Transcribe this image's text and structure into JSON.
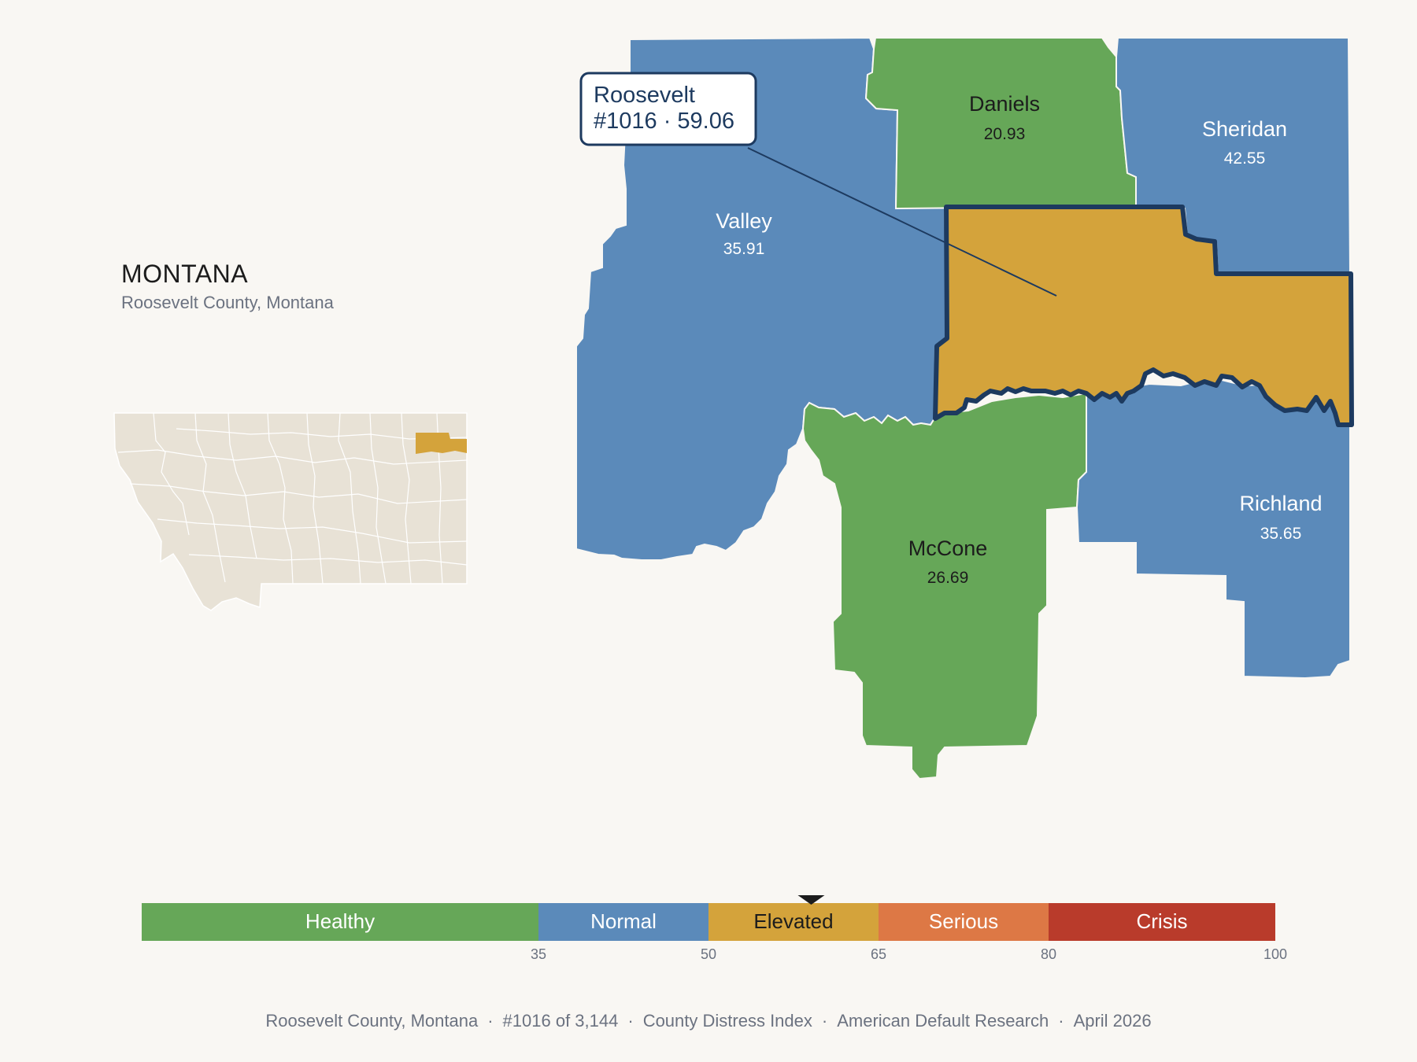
{
  "state": {
    "name": "MONTANA",
    "subtitle": "Roosevelt County, Montana"
  },
  "callout": {
    "line1": "Roosevelt",
    "line2": "#1016 · 59.06"
  },
  "counties": [
    {
      "id": "valley",
      "name": "Valley",
      "score": "35.91",
      "category": "Normal"
    },
    {
      "id": "daniels",
      "name": "Daniels",
      "score": "20.93",
      "category": "Healthy"
    },
    {
      "id": "sheridan",
      "name": "Sheridan",
      "score": "42.55",
      "category": "Normal"
    },
    {
      "id": "mccone",
      "name": "McCone",
      "score": "26.69",
      "category": "Healthy"
    },
    {
      "id": "richland",
      "name": "Richland",
      "score": "35.65",
      "category": "Normal"
    },
    {
      "id": "roosevelt",
      "name": "Roosevelt",
      "score": "59.06",
      "category": "Elevated"
    }
  ],
  "colors": {
    "healthy": "#66a758",
    "normal": "#5b8aba",
    "elevated": "#d4a33b",
    "serious": "#dd7845",
    "crisis": "#b93b2b",
    "highlight_outline": "#1d3a5f",
    "inset_land": "#e8e2d6",
    "background": "#f9f7f3"
  },
  "legend": {
    "min": 0,
    "max": 100,
    "marker_value": 59.06,
    "segments": [
      {
        "label": "Healthy",
        "from": 0,
        "to": 35,
        "color": "#66a758",
        "text_color": "#ffffff"
      },
      {
        "label": "Normal",
        "from": 35,
        "to": 50,
        "color": "#5b8aba",
        "text_color": "#ffffff"
      },
      {
        "label": "Elevated",
        "from": 50,
        "to": 65,
        "color": "#d4a33b",
        "text_color": "#1c1c1c"
      },
      {
        "label": "Serious",
        "from": 65,
        "to": 80,
        "color": "#dd7845",
        "text_color": "#ffffff"
      },
      {
        "label": "Crisis",
        "from": 80,
        "to": 100,
        "color": "#b93b2b",
        "text_color": "#ffffff"
      }
    ],
    "ticks": [
      "35",
      "50",
      "65",
      "80",
      "100"
    ]
  },
  "footer": {
    "location": "Roosevelt County, Montana",
    "rank": "#1016 of 3,144",
    "index_name": "County Distress Index",
    "source": "American Default Research",
    "date": "April 2026"
  }
}
